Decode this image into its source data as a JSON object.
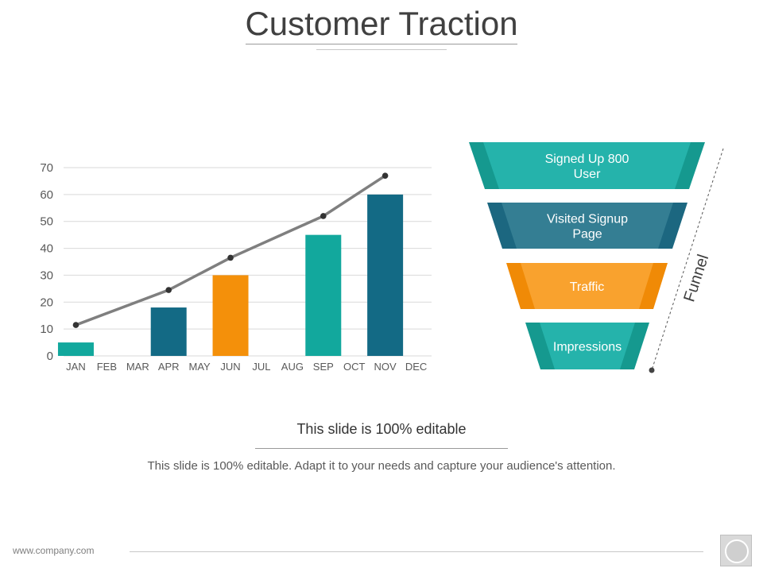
{
  "slide": {
    "title": "Customer Traction",
    "subheading": "This slide is 100% editable",
    "description": "This slide is 100% editable. Adapt it to your needs and capture your audience's attention.",
    "footer_url": "www.company.com"
  },
  "colors": {
    "teal": "#12a89d",
    "dark_teal": "#136a85",
    "orange": "#f4900a",
    "line": "#7f7f7f",
    "grid": "#d9d9d9"
  },
  "chart_data": {
    "type": "bar",
    "categories": [
      "JAN",
      "FEB",
      "MAR",
      "APR",
      "MAY",
      "JUN",
      "JUL",
      "AUG",
      "SEP",
      "OCT",
      "NOV",
      "DEC"
    ],
    "values": [
      5,
      null,
      null,
      18,
      null,
      30,
      null,
      null,
      45,
      null,
      60,
      null
    ],
    "bar_colors": [
      "#12a89d",
      null,
      null,
      "#136a85",
      null,
      "#f4900a",
      null,
      null,
      "#12a89d",
      null,
      "#136a85",
      null
    ],
    "trend_line": {
      "type": "line",
      "points": [
        {
          "category": "JAN",
          "value": 11.5
        },
        {
          "category": "APR",
          "value": 24.5
        },
        {
          "category": "JUN",
          "value": 36.5
        },
        {
          "category": "SEP",
          "value": 52
        },
        {
          "category": "NOV",
          "value": 67
        }
      ]
    },
    "yticks": [
      0,
      10,
      20,
      30,
      40,
      50,
      60,
      70
    ],
    "ylim": [
      0,
      70
    ],
    "grid": true,
    "title": "",
    "xlabel": "",
    "ylabel": ""
  },
  "funnel": {
    "label": "Funnel",
    "stages": [
      {
        "lines": [
          "Signed  Up 800",
          "User"
        ],
        "color": "#25b3ab",
        "edge": "#15998f"
      },
      {
        "lines": [
          "Visited Signup",
          "Page"
        ],
        "color": "#347e93",
        "edge": "#1c6780"
      },
      {
        "lines": [
          "Traffic"
        ],
        "color": "#f9a22e",
        "edge": "#f08a06"
      },
      {
        "lines": [
          "Impressions"
        ],
        "color": "#25b3ab",
        "edge": "#15998f"
      }
    ]
  }
}
